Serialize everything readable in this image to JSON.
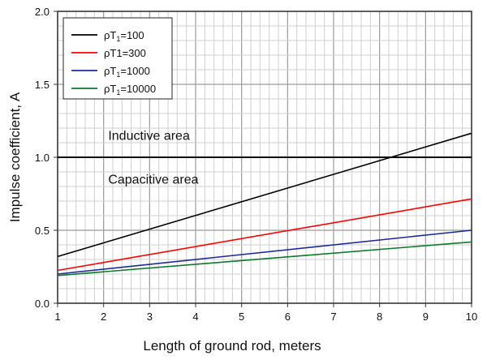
{
  "chart_data": {
    "type": "line",
    "title": "",
    "xlabel": "Length of ground rod, meters",
    "ylabel": "Impulse coefficient, A",
    "xlim": [
      1,
      10
    ],
    "ylim": [
      0,
      2.0
    ],
    "xticks": [
      "1",
      "2",
      "3",
      "4",
      "5",
      "6",
      "7",
      "8",
      "9",
      "10"
    ],
    "yticks": [
      "0.0",
      "0.5",
      "1.0",
      "1.5",
      "2.0"
    ],
    "grid": true,
    "legend_position": "top-left",
    "x": [
      1,
      10
    ],
    "series": [
      {
        "name": "ρT1=100",
        "name_main": "ρT",
        "name_sub": "1",
        "name_tail": "=100",
        "color": "#000000",
        "values": [
          0.32,
          1.165
        ]
      },
      {
        "name": "ρT1=300",
        "name_main": "ρT1=300",
        "name_sub": "",
        "name_tail": "",
        "color": "#ff0000",
        "values": [
          0.225,
          0.715
        ]
      },
      {
        "name": "ρT1=1000",
        "name_main": "ρT",
        "name_sub": "1",
        "name_tail": "=1000",
        "color": "#1c2a9c",
        "values": [
          0.2,
          0.5
        ]
      },
      {
        "name": "ρT1=10000",
        "name_main": "ρT",
        "name_sub": "1",
        "name_tail": "=10000",
        "color": "#0b7a2a",
        "values": [
          0.19,
          0.42
        ]
      }
    ],
    "reference_line": {
      "y": 1.0,
      "color": "#000000"
    },
    "annotations": [
      {
        "text": "Inductive area",
        "x": 2.1,
        "y": 1.12
      },
      {
        "text": "Capacitive area",
        "x": 2.1,
        "y": 0.82
      }
    ]
  }
}
